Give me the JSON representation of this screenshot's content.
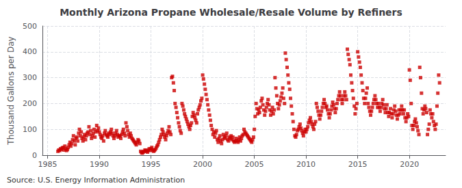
{
  "chart_data": {
    "type": "scatter",
    "title": "Monthly Arizona Propane Wholesale/Resale Volume by Refiners",
    "ylabel": "Thousand Gallons per Day",
    "annotations": [
      "Source: U.S. Energy Information Administration"
    ],
    "color": "#CC0000",
    "marker": "square",
    "grid": true,
    "xlim": [
      1984.5,
      2023.5
    ],
    "xticks": [
      1985,
      1990,
      1995,
      2000,
      2005,
      2010,
      2015,
      2020
    ],
    "ylim": [
      0,
      500
    ],
    "yticks": [
      0,
      100,
      200,
      300,
      400,
      500
    ],
    "x": [
      1986.0,
      1986.08,
      1986.17,
      1986.25,
      1986.33,
      1986.42,
      1986.5,
      1986.58,
      1986.67,
      1986.75,
      1986.83,
      1986.92,
      1987.0,
      1987.08,
      1987.17,
      1987.25,
      1987.33,
      1987.42,
      1987.5,
      1987.58,
      1987.67,
      1987.75,
      1987.83,
      1987.92,
      1988.0,
      1988.08,
      1988.17,
      1988.25,
      1988.33,
      1988.42,
      1988.5,
      1988.58,
      1988.67,
      1988.75,
      1988.83,
      1988.92,
      1989.0,
      1989.08,
      1989.17,
      1989.25,
      1989.33,
      1989.42,
      1989.5,
      1989.58,
      1989.67,
      1989.75,
      1989.83,
      1989.92,
      1990.0,
      1990.08,
      1990.17,
      1990.25,
      1990.33,
      1990.42,
      1990.5,
      1990.58,
      1990.67,
      1990.75,
      1990.83,
      1990.92,
      1991.0,
      1991.08,
      1991.17,
      1991.25,
      1991.33,
      1991.42,
      1991.5,
      1991.58,
      1991.67,
      1991.75,
      1991.83,
      1991.92,
      1992.0,
      1992.08,
      1992.17,
      1992.25,
      1992.33,
      1992.42,
      1992.5,
      1992.58,
      1992.67,
      1992.75,
      1992.83,
      1992.92,
      1993.0,
      1993.08,
      1993.17,
      1993.25,
      1993.33,
      1993.42,
      1993.5,
      1993.58,
      1993.67,
      1993.75,
      1993.83,
      1993.92,
      1994.0,
      1994.08,
      1994.17,
      1994.25,
      1994.33,
      1994.42,
      1994.5,
      1994.58,
      1994.67,
      1994.75,
      1994.83,
      1994.92,
      1995.0,
      1995.08,
      1995.17,
      1995.25,
      1995.33,
      1995.42,
      1995.5,
      1995.58,
      1995.67,
      1995.75,
      1995.83,
      1995.92,
      1996.0,
      1996.08,
      1996.17,
      1996.25,
      1996.33,
      1996.42,
      1996.5,
      1996.58,
      1996.67,
      1996.75,
      1996.83,
      1996.92,
      1997.0,
      1997.08,
      1997.17,
      1997.25,
      1997.33,
      1997.42,
      1997.5,
      1997.58,
      1997.67,
      1997.75,
      1997.83,
      1997.92,
      1998.0,
      1998.08,
      1998.17,
      1998.25,
      1998.33,
      1998.42,
      1998.5,
      1998.58,
      1998.67,
      1998.75,
      1998.83,
      1998.92,
      1999.0,
      1999.08,
      1999.17,
      1999.25,
      1999.33,
      1999.42,
      1999.5,
      1999.58,
      1999.67,
      1999.75,
      1999.83,
      1999.92,
      2000.0,
      2000.08,
      2000.17,
      2000.25,
      2000.33,
      2000.42,
      2000.5,
      2000.58,
      2000.67,
      2000.75,
      2000.83,
      2000.92,
      2001.0,
      2001.08,
      2001.17,
      2001.25,
      2001.33,
      2001.42,
      2001.5,
      2001.58,
      2001.67,
      2001.75,
      2001.83,
      2001.92,
      2002.0,
      2002.08,
      2002.17,
      2002.25,
      2002.33,
      2002.42,
      2002.5,
      2002.58,
      2002.67,
      2002.75,
      2002.83,
      2002.92,
      2003.0,
      2003.08,
      2003.17,
      2003.25,
      2003.33,
      2003.42,
      2003.5,
      2003.58,
      2003.67,
      2003.75,
      2003.83,
      2003.92,
      2004.0,
      2004.08,
      2004.17,
      2004.25,
      2004.33,
      2004.42,
      2004.5,
      2004.58,
      2004.67,
      2004.75,
      2004.83,
      2004.92,
      2005.0,
      2005.08,
      2005.17,
      2005.25,
      2005.33,
      2005.42,
      2005.5,
      2005.58,
      2005.67,
      2005.75,
      2005.83,
      2005.92,
      2006.0,
      2006.08,
      2006.17,
      2006.25,
      2006.33,
      2006.42,
      2006.5,
      2006.58,
      2006.67,
      2006.75,
      2006.83,
      2006.92,
      2007.0,
      2007.08,
      2007.17,
      2007.25,
      2007.33,
      2007.42,
      2007.5,
      2007.58,
      2007.67,
      2007.75,
      2007.83,
      2007.92,
      2008.0,
      2008.08,
      2008.17,
      2008.25,
      2008.33,
      2008.42,
      2008.5,
      2008.58,
      2008.67,
      2008.75,
      2008.83,
      2008.92,
      2009.0,
      2009.08,
      2009.17,
      2009.25,
      2009.33,
      2009.42,
      2009.5,
      2009.58,
      2009.67,
      2009.75,
      2009.83,
      2009.92,
      2010.0,
      2010.08,
      2010.17,
      2010.25,
      2010.33,
      2010.42,
      2010.5,
      2010.58,
      2010.67,
      2010.75,
      2010.83,
      2010.92,
      2011.0,
      2011.08,
      2011.17,
      2011.25,
      2011.33,
      2011.42,
      2011.5,
      2011.58,
      2011.67,
      2011.75,
      2011.83,
      2011.92,
      2012.0,
      2012.08,
      2012.17,
      2012.25,
      2012.33,
      2012.42,
      2012.5,
      2012.58,
      2012.67,
      2012.75,
      2012.83,
      2012.92,
      2013.0,
      2013.08,
      2013.17,
      2013.25,
      2013.33,
      2013.42,
      2013.5,
      2013.58,
      2013.67,
      2013.75,
      2013.83,
      2013.92,
      2014.0,
      2014.08,
      2014.17,
      2014.25,
      2014.33,
      2014.42,
      2014.5,
      2014.58,
      2014.67,
      2014.75,
      2014.83,
      2014.92,
      2015.0,
      2015.08,
      2015.17,
      2015.25,
      2015.33,
      2015.42,
      2015.5,
      2015.58,
      2015.67,
      2015.75,
      2015.83,
      2015.92,
      2016.0,
      2016.08,
      2016.17,
      2016.25,
      2016.33,
      2016.42,
      2016.5,
      2016.58,
      2016.67,
      2016.75,
      2016.83,
      2016.92,
      2017.0,
      2017.08,
      2017.17,
      2017.25,
      2017.33,
      2017.42,
      2017.5,
      2017.58,
      2017.67,
      2017.75,
      2017.83,
      2017.92,
      2018.0,
      2018.08,
      2018.17,
      2018.25,
      2018.33,
      2018.42,
      2018.5,
      2018.58,
      2018.67,
      2018.75,
      2018.83,
      2018.92,
      2019.0,
      2019.08,
      2019.17,
      2019.25,
      2019.33,
      2019.42,
      2019.5,
      2019.58,
      2019.67,
      2019.75,
      2019.83,
      2019.92,
      2020.0,
      2020.08,
      2020.17,
      2020.25,
      2020.33,
      2020.42,
      2020.5,
      2020.58,
      2020.67,
      2020.75,
      2020.83,
      2020.92,
      2021.0,
      2021.08,
      2021.17,
      2021.25,
      2021.33,
      2021.42,
      2021.5,
      2021.58,
      2021.67,
      2021.75,
      2021.83,
      2021.92,
      2022.0,
      2022.08,
      2022.17,
      2022.25,
      2022.33,
      2022.42,
      2022.5,
      2022.58,
      2022.67,
      2022.75,
      2022.83,
      2022.92
    ],
    "values": [
      15,
      20,
      18,
      25,
      22,
      28,
      30,
      20,
      35,
      25,
      18,
      22,
      30,
      40,
      50,
      35,
      45,
      60,
      75,
      55,
      40,
      65,
      70,
      55,
      85,
      100,
      75,
      90,
      65,
      55,
      70,
      80,
      60,
      75,
      85,
      90,
      110,
      80,
      95,
      65,
      75,
      85,
      100,
      70,
      90,
      115,
      95,
      105,
      90,
      80,
      70,
      65,
      75,
      55,
      85,
      95,
      80,
      75,
      70,
      85,
      80,
      90,
      100,
      85,
      75,
      65,
      75,
      85,
      95,
      80,
      70,
      75,
      75,
      65,
      80,
      90,
      100,
      85,
      75,
      125,
      110,
      95,
      80,
      70,
      85,
      75,
      65,
      60,
      55,
      50,
      45,
      40,
      50,
      60,
      55,
      45,
      15,
      10,
      8,
      12,
      15,
      20,
      18,
      15,
      12,
      20,
      25,
      18,
      25,
      30,
      20,
      15,
      18,
      22,
      28,
      35,
      40,
      50,
      60,
      70,
      80,
      100,
      90,
      80,
      70,
      60,
      75,
      85,
      95,
      110,
      90,
      80,
      300,
      305,
      280,
      250,
      200,
      185,
      165,
      145,
      125,
      110,
      95,
      85,
      200,
      190,
      175,
      160,
      150,
      140,
      130,
      120,
      110,
      100,
      115,
      125,
      150,
      165,
      155,
      145,
      135,
      125,
      160,
      175,
      185,
      195,
      210,
      220,
      310,
      295,
      275,
      255,
      235,
      215,
      195,
      175,
      155,
      135,
      115,
      100,
      80,
      90,
      70,
      85,
      95,
      60,
      50,
      65,
      75,
      55,
      45,
      60,
      80,
      70,
      65,
      75,
      85,
      60,
      55,
      70,
      65,
      75,
      60,
      70,
      55,
      50,
      55,
      65,
      55,
      50,
      60,
      70,
      55,
      65,
      75,
      80,
      100,
      90,
      85,
      80,
      75,
      70,
      65,
      60,
      55,
      50,
      60,
      70,
      100,
      150,
      200,
      180,
      160,
      175,
      165,
      185,
      210,
      220,
      195,
      175,
      155,
      170,
      185,
      200,
      215,
      195,
      175,
      155,
      170,
      185,
      160,
      175,
      300,
      260,
      230,
      200,
      180,
      195,
      210,
      225,
      240,
      260,
      220,
      200,
      395,
      370,
      340,
      310,
      280,
      255,
      220,
      190,
      160,
      130,
      100,
      75,
      70,
      80,
      95,
      100,
      110,
      120,
      105,
      95,
      85,
      75,
      90,
      100,
      90,
      100,
      110,
      125,
      135,
      145,
      130,
      120,
      110,
      100,
      120,
      130,
      200,
      185,
      170,
      155,
      140,
      155,
      170,
      185,
      200,
      215,
      200,
      185,
      190,
      175,
      160,
      145,
      160,
      175,
      190,
      205,
      195,
      180,
      165,
      180,
      200,
      215,
      230,
      245,
      230,
      215,
      200,
      215,
      230,
      245,
      230,
      215,
      410,
      390,
      370,
      350,
      310,
      280,
      250,
      220,
      190,
      160,
      180,
      200,
      400,
      380,
      360,
      340,
      310,
      280,
      250,
      220,
      200,
      220,
      240,
      260,
      200,
      185,
      170,
      155,
      170,
      185,
      200,
      215,
      230,
      215,
      200,
      185,
      200,
      185,
      170,
      185,
      200,
      215,
      195,
      180,
      165,
      180,
      195,
      165,
      150,
      165,
      180,
      160,
      145,
      160,
      175,
      190,
      170,
      155,
      140,
      155,
      175,
      160,
      175,
      190,
      175,
      160,
      175,
      145,
      130,
      145,
      160,
      150,
      330,
      290,
      200,
      115,
      100,
      115,
      130,
      140,
      125,
      110,
      95,
      80,
      340,
      300,
      240,
      180,
      160,
      175,
      190,
      180,
      165,
      80,
      100,
      120,
      175,
      160,
      145,
      160,
      130,
      115,
      100,
      120,
      190,
      240,
      310,
      280
    ]
  }
}
